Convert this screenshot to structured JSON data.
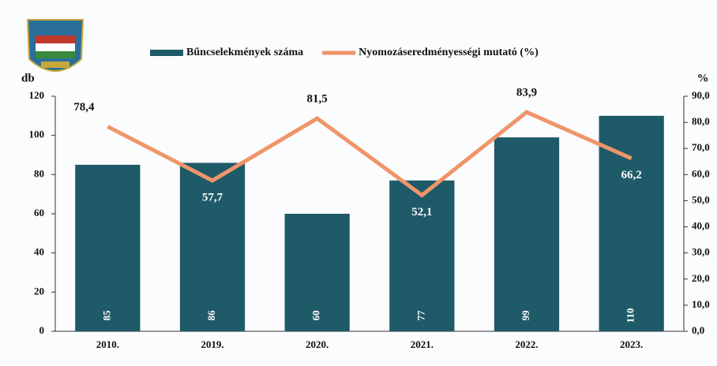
{
  "chart_data": {
    "type": "bar",
    "categories": [
      "2010.",
      "2019.",
      "2020.",
      "2021.",
      "2022.",
      "2023."
    ],
    "series": [
      {
        "name": "Bűncselekmények száma",
        "type": "bar",
        "color": "#1f5a68",
        "values": [
          85,
          86,
          60,
          77,
          99,
          110
        ]
      },
      {
        "name": "Nyomozáseredményességi mutató (%)",
        "type": "line",
        "axis": "y2",
        "color": "#f0956a",
        "values": [
          78.4,
          57.7,
          81.5,
          52.1,
          83.9,
          66.2
        ],
        "value_labels": [
          "78,4",
          "57,7",
          "81,5",
          "52,1",
          "83,9",
          "66,2"
        ]
      }
    ],
    "ylabel": "db",
    "y2label": "%",
    "ylim": [
      0,
      120
    ],
    "yticks": [
      0,
      20,
      40,
      60,
      80,
      100,
      120
    ],
    "y2lim": [
      0,
      90
    ],
    "y2ticks": [
      {
        "value": 0,
        "label": "0,0"
      },
      {
        "value": 10,
        "label": "10,0"
      },
      {
        "value": 20,
        "label": "20,0"
      },
      {
        "value": 30,
        "label": "30,0"
      },
      {
        "value": 40,
        "label": "40,0"
      },
      {
        "value": 50,
        "label": "50,0"
      },
      {
        "value": 60,
        "label": "60,0"
      },
      {
        "value": 70,
        "label": "70,0"
      },
      {
        "value": 80,
        "label": "80,0"
      },
      {
        "value": 90,
        "label": "90,0"
      }
    ]
  }
}
